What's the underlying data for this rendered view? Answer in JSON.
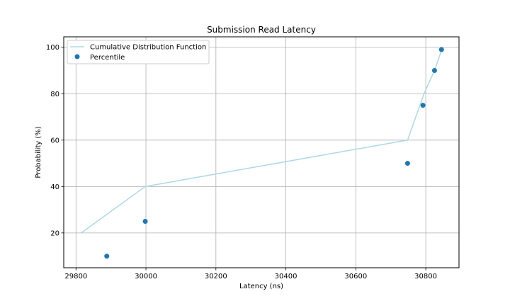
{
  "chart_data": {
    "type": "line",
    "title": "Submission Read Latency",
    "xlabel": "Latency (ns)",
    "ylabel": "Probability (%)",
    "xlim": [
      29765,
      30895
    ],
    "ylim": [
      5,
      104.5
    ],
    "xticks": [
      29800,
      30000,
      30200,
      30400,
      30600,
      30800
    ],
    "yticks": [
      20,
      40,
      60,
      80,
      100
    ],
    "grid": true,
    "legend_position": "top-left",
    "series": [
      {
        "name": "Cumulative Distribution Function",
        "type": "line",
        "color": "#add8e6",
        "x": [
          29815,
          29998,
          30748,
          30795,
          30825,
          30848
        ],
        "y": [
          20,
          40,
          60,
          80,
          90,
          100
        ]
      },
      {
        "name": "Percentile",
        "type": "scatter",
        "color": "#1f77b4",
        "x": [
          29888,
          29998,
          30748,
          30792,
          30825,
          30845
        ],
        "y": [
          10,
          25,
          50,
          75,
          90,
          99
        ]
      }
    ]
  }
}
